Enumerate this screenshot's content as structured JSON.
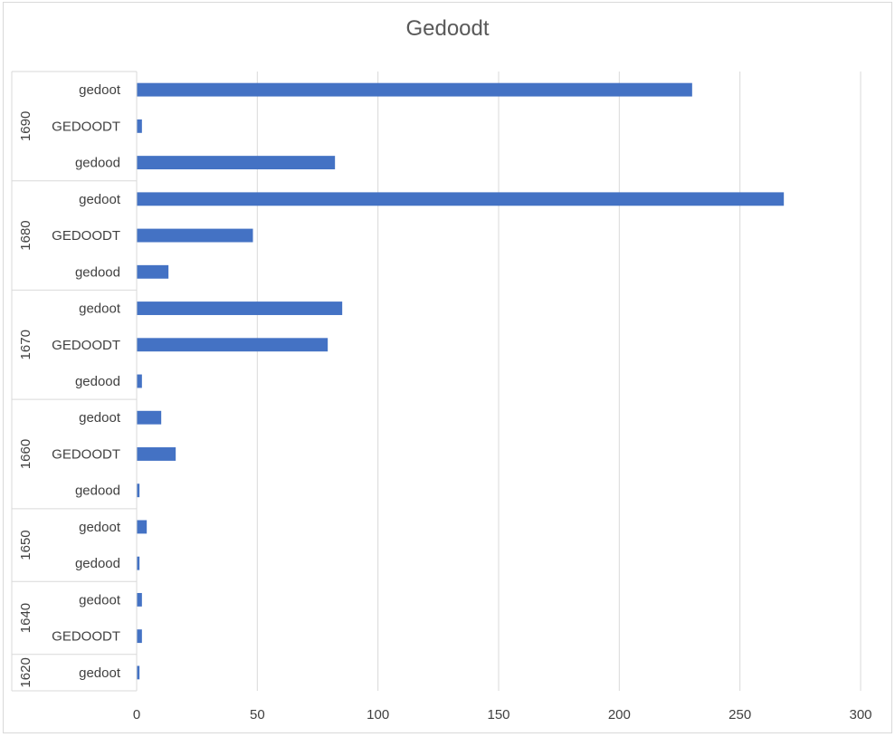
{
  "chart_data": {
    "type": "bar",
    "orientation": "horizontal",
    "title": "Gedoodt",
    "xlim": [
      0,
      300
    ],
    "x_ticks": [
      0,
      50,
      100,
      150,
      200,
      250,
      300
    ],
    "grid": true,
    "legend": "none",
    "bar_color": "#4472c4",
    "groups": [
      {
        "label": "1690",
        "items": [
          {
            "label": "gedoot",
            "value": 230
          },
          {
            "label": "GEDOODT",
            "value": 2
          },
          {
            "label": "gedood",
            "value": 82
          }
        ]
      },
      {
        "label": "1680",
        "items": [
          {
            "label": "gedoot",
            "value": 268
          },
          {
            "label": "GEDOODT",
            "value": 48
          },
          {
            "label": "gedood",
            "value": 13
          }
        ]
      },
      {
        "label": "1670",
        "items": [
          {
            "label": "gedoot",
            "value": 85
          },
          {
            "label": "GEDOODT",
            "value": 79
          },
          {
            "label": "gedood",
            "value": 2
          }
        ]
      },
      {
        "label": "1660",
        "items": [
          {
            "label": "gedoot",
            "value": 10
          },
          {
            "label": "GEDOODT",
            "value": 16
          },
          {
            "label": "gedood",
            "value": 1
          }
        ]
      },
      {
        "label": "1650",
        "items": [
          {
            "label": "gedoot",
            "value": 4
          },
          {
            "label": "gedood",
            "value": 1
          }
        ]
      },
      {
        "label": "1640",
        "items": [
          {
            "label": "gedoot",
            "value": 2
          },
          {
            "label": "GEDOODT",
            "value": 2
          }
        ]
      },
      {
        "label": "1620",
        "items": [
          {
            "label": "gedoot",
            "value": 1
          }
        ]
      }
    ]
  }
}
